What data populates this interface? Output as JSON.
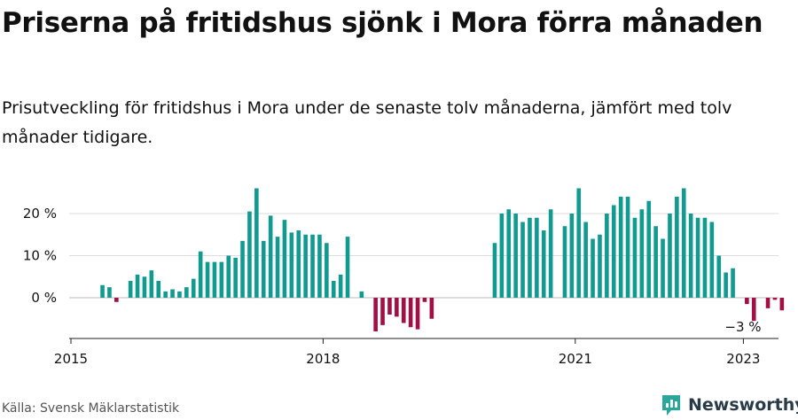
{
  "title": "Priserna på fritidshus sjönk i Mora förra månaden",
  "subtitle": "Prisutveckling för fritidshus i Mora under de senaste tolv månaderna, jämfört med tolv månader tidigare.",
  "source": "Källa: Svensk Mäklarstatistik",
  "brand": "Newsworthy",
  "colors": {
    "positive": "#119a8f",
    "negative": "#a10f45",
    "grid": "#dddddd",
    "text": "#111111",
    "brand": "#2a3b48"
  },
  "chart_data": {
    "type": "bar",
    "title": "",
    "xlabel": "",
    "ylabel": "",
    "x_ticks": [
      "2015",
      "2018",
      "2021",
      "2023"
    ],
    "y_ticks": [
      "0 %",
      "10 %",
      "20 %"
    ],
    "ylim": [
      -9,
      29
    ],
    "annotation": "−3 %",
    "months": [
      "2015-01",
      "2015-02",
      "2015-03",
      "2015-04",
      "2015-05",
      "2015-06",
      "2015-07",
      "2015-08",
      "2015-09",
      "2015-10",
      "2015-11",
      "2015-12",
      "2016-01",
      "2016-02",
      "2016-03",
      "2016-04",
      "2016-05",
      "2016-06",
      "2016-07",
      "2016-08",
      "2016-09",
      "2016-10",
      "2016-11",
      "2016-12",
      "2017-01",
      "2017-02",
      "2017-03",
      "2017-04",
      "2017-05",
      "2017-06",
      "2017-07",
      "2017-08",
      "2017-09",
      "2017-10",
      "2017-11",
      "2017-12",
      "2018-01",
      "2018-02",
      "2018-03",
      "2018-04",
      "2018-05",
      "2018-06",
      "2018-07",
      "2018-08",
      "2018-09",
      "2018-10",
      "2018-11",
      "2018-12",
      "2019-01",
      "2019-02",
      "2019-03",
      "2019-04",
      "2019-05",
      "2019-06",
      "2019-07",
      "2019-08",
      "2019-09",
      "2019-10",
      "2019-11",
      "2019-12",
      "2020-01",
      "2020-02",
      "2020-03",
      "2020-04",
      "2020-05",
      "2020-06",
      "2020-07",
      "2020-08",
      "2020-09",
      "2020-10",
      "2020-11",
      "2020-12",
      "2021-01",
      "2021-02",
      "2021-03",
      "2021-04",
      "2021-05",
      "2021-06",
      "2021-07",
      "2021-08",
      "2021-09",
      "2021-10",
      "2021-11",
      "2021-12",
      "2022-01",
      "2022-02",
      "2022-03",
      "2022-04",
      "2022-05",
      "2022-06",
      "2022-07",
      "2022-08",
      "2022-09",
      "2022-10",
      "2022-11",
      "2022-12",
      "2023-01",
      "2023-02",
      "2023-03",
      "2023-04",
      "2023-05",
      "2023-06",
      "2023-07",
      "2023-08",
      "2023-09",
      "2023-10",
      "2023-11",
      "2023-12"
    ],
    "values": [
      null,
      null,
      null,
      null,
      3,
      2.5,
      -1,
      null,
      4,
      5.5,
      5,
      6.5,
      4,
      1.5,
      2,
      1.5,
      2.5,
      4.5,
      11,
      8.5,
      8.5,
      8.5,
      10,
      9.5,
      13.5,
      20.5,
      26,
      13.5,
      19.5,
      14.5,
      18.5,
      15.5,
      16,
      15,
      15,
      15,
      13,
      4,
      5.5,
      14.5,
      null,
      1.5,
      null,
      -8,
      -6.5,
      -4,
      -4.5,
      -6,
      -7,
      -7.5,
      -1,
      -5,
      null,
      null,
      null,
      null,
      null,
      null,
      null,
      null,
      13,
      20,
      21,
      20,
      18,
      19,
      19,
      16,
      21,
      null,
      17,
      20,
      26,
      18,
      14,
      15,
      20,
      22,
      24,
      24,
      19,
      21,
      23,
      17,
      14,
      20,
      24,
      26,
      20,
      19,
      19,
      18,
      10,
      6,
      7,
      null,
      -1.5,
      -5.5,
      null,
      -2.5,
      -0.5,
      -3,
      null,
      null,
      null,
      null,
      null,
      null
    ]
  }
}
